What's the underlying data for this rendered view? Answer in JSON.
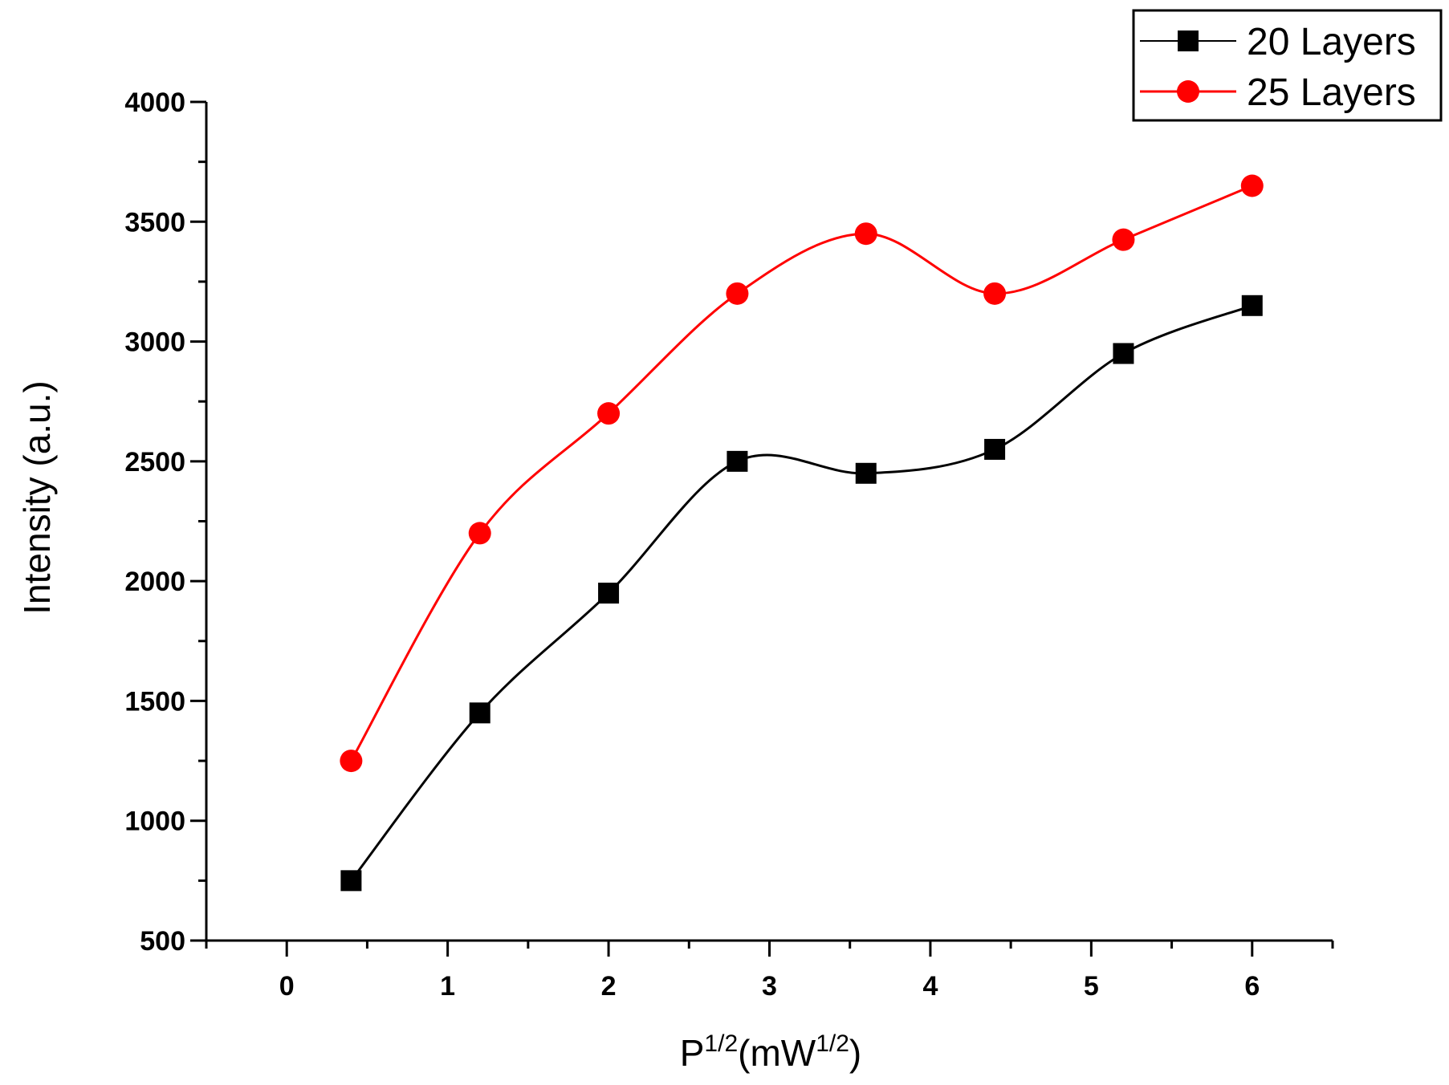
{
  "chart_data": {
    "type": "line",
    "title": "",
    "xlabel": "P^(1/2)(mW^(1/2))",
    "xlabel_parts": {
      "base": "P",
      "sup1": "1/2",
      "mid": "(mW",
      "sup2": "1/2",
      "end": ")"
    },
    "ylabel": "Intensity (a.u.)",
    "xlim": [
      -0.5,
      6.5
    ],
    "ylim": [
      500,
      4000
    ],
    "xticks": [
      0,
      1,
      2,
      3,
      4,
      5,
      6
    ],
    "xtick_labels": [
      "0",
      "1",
      "2",
      "3",
      "4",
      "5",
      "6"
    ],
    "yticks": [
      500,
      1000,
      1500,
      2000,
      2500,
      3000,
      3500,
      4000
    ],
    "ytick_labels": [
      "500",
      "1000",
      "1500",
      "2000",
      "2500",
      "3000",
      "3500",
      "4000"
    ],
    "legend_position": "top-right",
    "grid": false,
    "series": [
      {
        "name": "20 Layers",
        "color": "#000000",
        "marker": "square",
        "x": [
          0.4,
          1.2,
          2.0,
          2.8,
          3.6,
          4.4,
          5.2,
          6.0
        ],
        "values": [
          750,
          1450,
          1950,
          2500,
          2450,
          2550,
          2950,
          3150
        ]
      },
      {
        "name": "25 Layers",
        "color": "#ff0000",
        "marker": "circle",
        "x": [
          0.4,
          1.2,
          2.0,
          2.8,
          3.6,
          4.4,
          5.2,
          6.0
        ],
        "values": [
          1250,
          2200,
          2700,
          3200,
          3450,
          3200,
          3425,
          3650
        ]
      }
    ]
  }
}
